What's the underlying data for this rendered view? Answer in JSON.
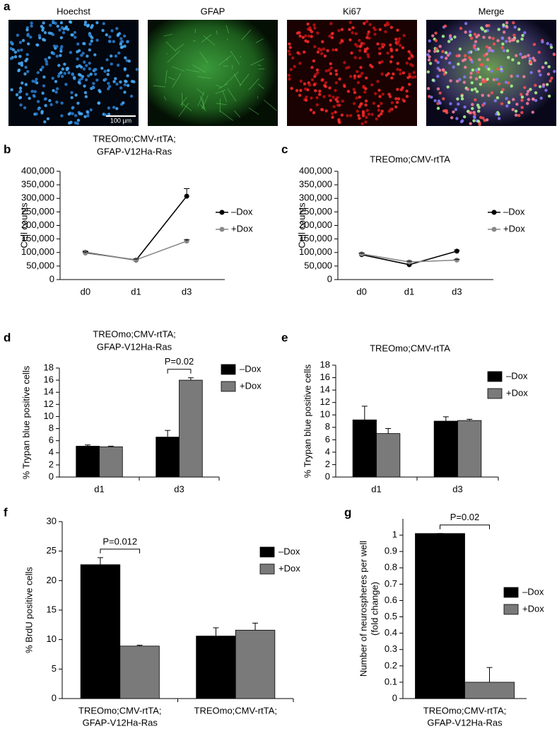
{
  "images": {
    "panel": "a",
    "labels": [
      "Hoechst",
      "GFAP",
      "Ki67",
      "Merge"
    ],
    "scale_bar": "100 μm"
  },
  "chart_data": [
    {
      "type": "line",
      "panel": "b",
      "title": [
        "TREOmo;CMV-rtTA;",
        "GFAP-V12Ha-Ras"
      ],
      "y_label": [
        "Cell counts"
      ],
      "categories": [
        "d0",
        "d1",
        "d3"
      ],
      "series": [
        {
          "name": "–Dox",
          "color": "#000000",
          "values": [
            100000,
            72000,
            308000
          ],
          "errors": [
            5000,
            4000,
            28000
          ]
        },
        {
          "name": "+Dox",
          "color": "#888888",
          "values": [
            98000,
            73000,
            142000
          ],
          "errors": [
            4000,
            3000,
            5000
          ]
        }
      ],
      "ylim": [
        0,
        400000
      ],
      "yticks": [
        0,
        {
          "value": 50000,
          "label": "50,000"
        },
        {
          "value": 100000,
          "label": "100,000"
        },
        {
          "value": 150000,
          "label": "150,000"
        },
        {
          "value": 200000,
          "label": "200,000"
        },
        {
          "value": 250000,
          "label": "250,000"
        },
        {
          "value": 300000,
          "label": "300,000"
        },
        {
          "value": 350000,
          "label": "350,000"
        },
        {
          "value": 400000,
          "label": "400,000"
        }
      ]
    },
    {
      "type": "line",
      "panel": "c",
      "title": [
        "TREOmo;CMV-rtTA"
      ],
      "y_label": [
        "Cell counts"
      ],
      "categories": [
        "d0",
        "d1",
        "d3"
      ],
      "series": [
        {
          "name": "–Dox",
          "color": "#000000",
          "values": [
            92000,
            55000,
            105000
          ],
          "errors": [
            3000,
            3000,
            4000
          ]
        },
        {
          "name": "+Dox",
          "color": "#888888",
          "values": [
            95000,
            65000,
            72000
          ],
          "errors": [
            3000,
            3000,
            3000
          ]
        }
      ],
      "ylim": [
        0,
        400000
      ],
      "yticks": [
        0,
        {
          "value": 50000,
          "label": "50,000"
        },
        {
          "value": 100000,
          "label": "100,000"
        },
        {
          "value": 150000,
          "label": "150,000"
        },
        {
          "value": 200000,
          "label": "200,000"
        },
        {
          "value": 250000,
          "label": "250,000"
        },
        {
          "value": 300000,
          "label": "300,000"
        },
        {
          "value": 350000,
          "label": "350,000"
        },
        {
          "value": 400000,
          "label": "400,000"
        }
      ]
    },
    {
      "type": "bar",
      "panel": "d",
      "title": [
        "TREOmo;CMV-rtTA;",
        "GFAP-V12Ha-Ras"
      ],
      "y_label": [
        "% Trypan blue positive cells"
      ],
      "categories": [
        "d1",
        "d3"
      ],
      "series": [
        {
          "name": "–Dox",
          "color": "#000000",
          "values": [
            5.1,
            6.6
          ],
          "errors": [
            0.2,
            1.1
          ]
        },
        {
          "name": "+Dox",
          "color": "#7a7a7a",
          "values": [
            5.0,
            16.0
          ],
          "errors": [
            0.1,
            0.4
          ]
        }
      ],
      "annotations": [
        {
          "text": "P=0.02",
          "category": "d3"
        }
      ],
      "ylim": [
        0,
        18
      ],
      "yticks": [
        0,
        2,
        4,
        6,
        8,
        10,
        12,
        14,
        16,
        18
      ]
    },
    {
      "type": "bar",
      "panel": "e",
      "title": [
        "TREOmo;CMV-rtTA"
      ],
      "y_label": [
        "% Trypan blue positive cells"
      ],
      "categories": [
        "d1",
        "d3"
      ],
      "series": [
        {
          "name": "–Dox",
          "color": "#000000",
          "values": [
            9.2,
            9.0
          ],
          "errors": [
            2.2,
            0.7
          ]
        },
        {
          "name": "+Dox",
          "color": "#7a7a7a",
          "values": [
            7.0,
            9.1
          ],
          "errors": [
            0.8,
            0.2
          ]
        }
      ],
      "ylim": [
        0,
        18
      ],
      "yticks": [
        0,
        2,
        4,
        6,
        8,
        10,
        12,
        14,
        16,
        18
      ]
    },
    {
      "type": "bar",
      "panel": "f",
      "y_label": [
        "% BrdU positive cells"
      ],
      "categories": [
        [
          "TREOmo;CMV-rtTA;",
          "GFAP-V12Ha-Ras"
        ],
        [
          "TREOmo;CMV-rtTA;"
        ]
      ],
      "series": [
        {
          "name": "–Dox",
          "color": "#000000",
          "values": [
            22.7,
            10.6
          ],
          "errors": [
            1.2,
            1.4
          ]
        },
        {
          "name": "+Dox",
          "color": "#7a7a7a",
          "values": [
            8.9,
            11.6
          ],
          "errors": [
            0.15,
            1.2
          ]
        }
      ],
      "annotations": [
        {
          "text": "P=0.012",
          "category": 0
        }
      ],
      "ylim": [
        0,
        30
      ],
      "yticks": [
        0,
        5,
        10,
        15,
        20,
        25,
        30
      ]
    },
    {
      "type": "bar",
      "panel": "g",
      "y_label": [
        "Number of neurospheres per well",
        "(fold change)"
      ],
      "categories": [
        [
          "TREOmo;CMV-rtTA;",
          "GFAP-V12Ha-Ras"
        ]
      ],
      "series": [
        {
          "name": "–Dox",
          "color": "#000000",
          "values": [
            1.01
          ],
          "errors": [
            0
          ]
        },
        {
          "name": "+Dox",
          "color": "#7a7a7a",
          "values": [
            0.1
          ],
          "errors": [
            0.09
          ]
        }
      ],
      "annotations": [
        {
          "text": "P=0.02",
          "category": 0
        }
      ],
      "ylim": [
        0,
        1.1
      ],
      "yticks": [
        0,
        0.1,
        0.2,
        0.3,
        0.4,
        0.5,
        0.6,
        0.7,
        0.8,
        0.9,
        1
      ]
    }
  ]
}
